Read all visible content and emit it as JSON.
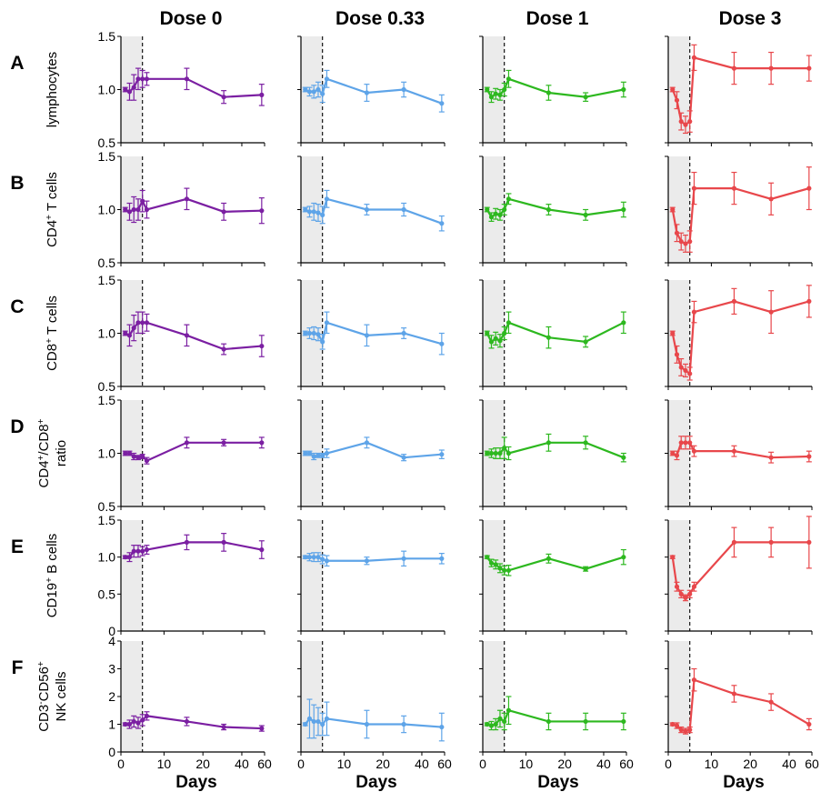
{
  "chart_data": {
    "type": "line",
    "doses": [
      "Dose 0",
      "Dose 0.33",
      "Dose 1",
      "Dose 3"
    ],
    "colors": [
      "#7b1fa2",
      "#5ea4e8",
      "#2db81f",
      "#e8474b"
    ],
    "xlabel": "Days",
    "x_tick_labels": [
      "0",
      "10",
      "20",
      "40",
      "60"
    ],
    "x_tick_values": [
      0,
      10,
      20,
      40,
      60
    ],
    "x": [
      1,
      2,
      3,
      4,
      5,
      6,
      15,
      29,
      57
    ],
    "shaded_until_day": 5,
    "rows": [
      {
        "letter": "A",
        "ylabel": [
          "lymphocytes"
        ],
        "ylim": [
          0.5,
          1.5
        ],
        "yticks": [
          0.5,
          1.0,
          1.5
        ],
        "ytick_labels": [
          "0.5",
          "1.0",
          "1.5"
        ],
        "series": [
          {
            "y": [
              1.0,
              0.98,
              1.02,
              1.1,
              1.1,
              1.1,
              1.1,
              0.93,
              0.95
            ],
            "err": [
              0.02,
              0.08,
              0.12,
              0.1,
              0.08,
              0.06,
              0.1,
              0.06,
              0.1
            ]
          },
          {
            "y": [
              1.0,
              0.98,
              0.98,
              1.0,
              0.96,
              1.1,
              0.97,
              1.0,
              0.87
            ],
            "err": [
              0.02,
              0.04,
              0.06,
              0.07,
              0.08,
              0.08,
              0.08,
              0.07,
              0.08
            ]
          },
          {
            "y": [
              1.0,
              0.93,
              0.96,
              0.95,
              1.0,
              1.1,
              0.97,
              0.93,
              1.0
            ],
            "err": [
              0.02,
              0.05,
              0.05,
              0.05,
              0.06,
              0.08,
              0.07,
              0.04,
              0.07
            ]
          },
          {
            "y": [
              1.0,
              0.9,
              0.7,
              0.67,
              0.7,
              1.3,
              1.2,
              1.2,
              1.2
            ],
            "err": [
              0.02,
              0.08,
              0.08,
              0.08,
              0.1,
              0.12,
              0.15,
              0.15,
              0.12
            ]
          }
        ]
      },
      {
        "letter": "B",
        "ylabel": [
          "CD4",
          "+",
          " T cells"
        ],
        "ylim": [
          0.5,
          1.5
        ],
        "yticks": [
          0.5,
          1.0,
          1.5
        ],
        "ytick_labels": [
          "0.5",
          "1.0",
          "1.5"
        ],
        "series": [
          {
            "y": [
              1.0,
              0.98,
              1.0,
              1.0,
              1.08,
              1.0,
              1.1,
              0.98,
              0.99
            ],
            "err": [
              0.02,
              0.08,
              0.12,
              0.1,
              0.1,
              0.08,
              0.1,
              0.08,
              0.12
            ]
          },
          {
            "y": [
              1.0,
              0.98,
              0.98,
              0.97,
              0.95,
              1.1,
              1.0,
              1.0,
              0.87
            ],
            "err": [
              0.02,
              0.05,
              0.08,
              0.08,
              0.08,
              0.08,
              0.05,
              0.06,
              0.07
            ]
          },
          {
            "y": [
              1.0,
              0.93,
              0.96,
              0.95,
              1.0,
              1.1,
              1.0,
              0.95,
              1.0
            ],
            "err": [
              0.02,
              0.04,
              0.05,
              0.05,
              0.05,
              0.05,
              0.05,
              0.05,
              0.07
            ]
          },
          {
            "y": [
              1.0,
              0.78,
              0.7,
              0.68,
              0.7,
              1.2,
              1.2,
              1.1,
              1.2
            ],
            "err": [
              0.02,
              0.08,
              0.08,
              0.08,
              0.1,
              0.15,
              0.15,
              0.15,
              0.2
            ]
          }
        ]
      },
      {
        "letter": "C",
        "ylabel": [
          "CD8",
          "+",
          " T cells"
        ],
        "ylim": [
          0.5,
          1.5
        ],
        "yticks": [
          0.5,
          1.0,
          1.5
        ],
        "ytick_labels": [
          "0.5",
          "1.0",
          "1.5"
        ],
        "series": [
          {
            "y": [
              1.0,
              0.98,
              1.05,
              1.1,
              1.1,
              1.1,
              0.98,
              0.85,
              0.88
            ],
            "err": [
              0.02,
              0.1,
              0.12,
              0.1,
              0.1,
              0.08,
              0.1,
              0.05,
              0.1
            ]
          },
          {
            "y": [
              1.0,
              1.0,
              1.0,
              0.99,
              0.92,
              1.1,
              0.98,
              1.0,
              0.9
            ],
            "err": [
              0.02,
              0.05,
              0.06,
              0.06,
              0.07,
              0.1,
              0.1,
              0.05,
              0.1
            ]
          },
          {
            "y": [
              1.0,
              0.92,
              0.95,
              0.93,
              1.0,
              1.1,
              0.96,
              0.92,
              1.1
            ],
            "err": [
              0.02,
              0.06,
              0.06,
              0.06,
              0.06,
              0.1,
              0.1,
              0.05,
              0.1
            ]
          },
          {
            "y": [
              1.0,
              0.8,
              0.68,
              0.65,
              0.62,
              1.2,
              1.3,
              1.2,
              1.3
            ],
            "err": [
              0.02,
              0.08,
              0.08,
              0.06,
              0.06,
              0.1,
              0.12,
              0.2,
              0.15
            ]
          }
        ]
      },
      {
        "letter": "D",
        "ylabel": [
          "CD4",
          "+",
          "/CD8",
          "+",
          "ratio"
        ],
        "ylim": [
          0.5,
          1.5
        ],
        "yticks": [
          0.5,
          1.0,
          1.5
        ],
        "ytick_labels": [
          "0.5",
          "1.0",
          "1.5"
        ],
        "series": [
          {
            "y": [
              1.0,
              1.0,
              0.97,
              0.96,
              0.97,
              0.93,
              1.1,
              1.1,
              1.1
            ],
            "err": [
              0.02,
              0.02,
              0.03,
              0.02,
              0.02,
              0.03,
              0.05,
              0.03,
              0.05
            ]
          },
          {
            "y": [
              1.0,
              1.0,
              0.97,
              0.98,
              0.98,
              1.0,
              1.1,
              0.96,
              0.99
            ],
            "err": [
              0.02,
              0.02,
              0.03,
              0.02,
              0.02,
              0.04,
              0.05,
              0.03,
              0.04
            ]
          },
          {
            "y": [
              1.0,
              1.0,
              1.0,
              1.0,
              1.05,
              1.0,
              1.1,
              1.1,
              0.96
            ],
            "err": [
              0.02,
              0.04,
              0.05,
              0.05,
              0.1,
              0.06,
              0.08,
              0.06,
              0.04
            ]
          },
          {
            "y": [
              1.0,
              0.98,
              1.1,
              1.1,
              1.1,
              1.02,
              1.02,
              0.96,
              0.97
            ],
            "err": [
              0.02,
              0.04,
              0.06,
              0.06,
              0.06,
              0.05,
              0.05,
              0.05,
              0.05
            ]
          }
        ]
      },
      {
        "letter": "E",
        "ylabel": [
          "CD19",
          "+",
          " B cells"
        ],
        "ylim": [
          0,
          1.5
        ],
        "yticks": [
          0,
          0.5,
          1.0,
          1.5
        ],
        "ytick_labels": [
          "0",
          "0.5",
          "1.0",
          "1.5"
        ],
        "series": [
          {
            "y": [
              1.0,
              1.0,
              1.08,
              1.08,
              1.08,
              1.1,
              1.2,
              1.2,
              1.1
            ],
            "err": [
              0.02,
              0.06,
              0.08,
              0.08,
              0.06,
              0.06,
              0.1,
              0.12,
              0.12
            ]
          },
          {
            "y": [
              1.0,
              1.0,
              1.0,
              1.0,
              0.97,
              0.95,
              0.95,
              0.98,
              0.98
            ],
            "err": [
              0.02,
              0.05,
              0.06,
              0.06,
              0.06,
              0.07,
              0.05,
              0.1,
              0.07
            ]
          },
          {
            "y": [
              1.0,
              0.92,
              0.9,
              0.85,
              0.82,
              0.82,
              0.98,
              0.84,
              1.0
            ],
            "err": [
              0.02,
              0.05,
              0.06,
              0.06,
              0.06,
              0.07,
              0.06,
              0.03,
              0.1
            ]
          },
          {
            "y": [
              1.0,
              0.6,
              0.5,
              0.45,
              0.5,
              0.6,
              1.2,
              1.2,
              1.2
            ],
            "err": [
              0.02,
              0.06,
              0.05,
              0.04,
              0.05,
              0.06,
              0.2,
              0.2,
              0.35
            ]
          }
        ]
      },
      {
        "letter": "F",
        "ylabel": [
          "CD3",
          "-",
          "CD56",
          "+",
          "NK cells"
        ],
        "ylim": [
          0,
          4
        ],
        "yticks": [
          0,
          1,
          2,
          3,
          4
        ],
        "ytick_labels": [
          "0",
          "1",
          "2",
          "3",
          "4"
        ],
        "series": [
          {
            "y": [
              1.0,
              1.0,
              1.1,
              1.05,
              1.15,
              1.3,
              1.1,
              0.9,
              0.85
            ],
            "err": [
              0.05,
              0.15,
              0.2,
              0.2,
              0.2,
              0.15,
              0.15,
              0.1,
              0.1
            ]
          },
          {
            "y": [
              1.0,
              1.2,
              1.1,
              1.1,
              1.0,
              1.2,
              1.0,
              1.0,
              0.9
            ],
            "err": [
              0.05,
              0.7,
              0.6,
              0.5,
              0.4,
              0.6,
              0.5,
              0.3,
              0.5
            ]
          },
          {
            "y": [
              1.0,
              0.95,
              1.0,
              1.2,
              1.1,
              1.5,
              1.1,
              1.1,
              1.1
            ],
            "err": [
              0.05,
              0.15,
              0.2,
              0.3,
              0.3,
              0.5,
              0.3,
              0.3,
              0.3
            ]
          },
          {
            "y": [
              1.0,
              0.95,
              0.8,
              0.75,
              0.8,
              2.6,
              2.1,
              1.8,
              1.0
            ],
            "err": [
              0.05,
              0.1,
              0.1,
              0.1,
              0.1,
              0.4,
              0.3,
              0.3,
              0.2
            ]
          }
        ]
      }
    ]
  }
}
